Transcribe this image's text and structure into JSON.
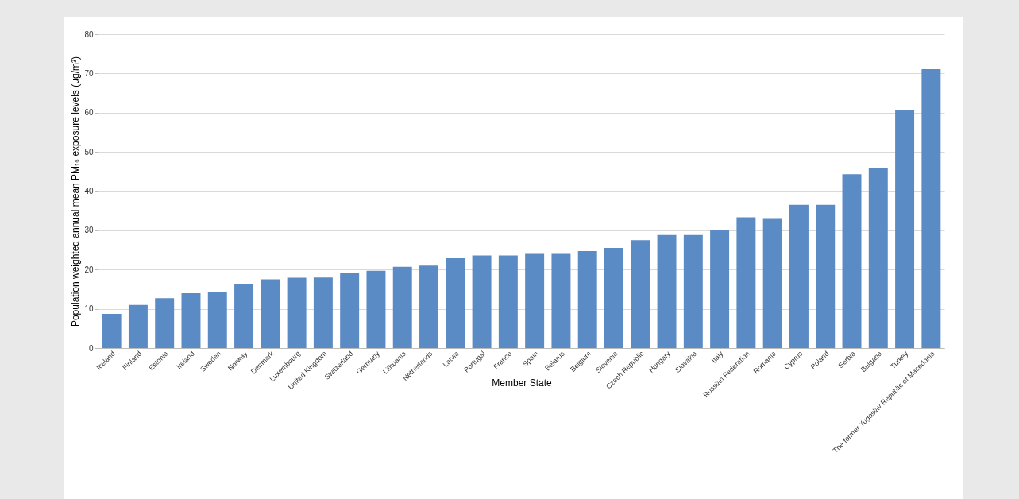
{
  "chart_data": {
    "type": "bar",
    "xlabel": "Member State",
    "ylabel": "Population weighted annual mean PM₁₀ exposure levels (µg/m³)",
    "categories": [
      "Iceland",
      "Finland",
      "Estonia",
      "Ireland",
      "Sweden",
      "Norway",
      "Denmark",
      "Luxembourg",
      "United Kingdom",
      "Switzerland",
      "Germany",
      "Lithuania",
      "Netherlands",
      "Latvia",
      "Portugal",
      "France",
      "Spain",
      "Belarus",
      "Belgium",
      "Slovenia",
      "Czech Republic",
      "Hungary",
      "Slovakia",
      "Italy",
      "Russian Federation",
      "Romania",
      "Cyprus",
      "Poland",
      "Serbia",
      "Bulgaria",
      "Turkey",
      "The former Yugoslav Republic of Macedonia"
    ],
    "values": [
      8.7,
      11.0,
      12.7,
      14.0,
      14.3,
      16.2,
      17.5,
      17.9,
      18.0,
      19.2,
      19.7,
      20.7,
      21.0,
      22.9,
      23.6,
      23.6,
      24.0,
      24.0,
      24.7,
      25.5,
      27.5,
      28.8,
      28.8,
      30.1,
      33.3,
      33.1,
      36.5,
      36.5,
      44.3,
      46.0,
      60.7,
      71.1
    ],
    "color": "#5b8bc5",
    "ylim": [
      0,
      80
    ],
    "yticks": [
      0,
      10,
      20,
      30,
      40,
      50,
      60,
      70,
      80
    ],
    "grid": "y"
  }
}
